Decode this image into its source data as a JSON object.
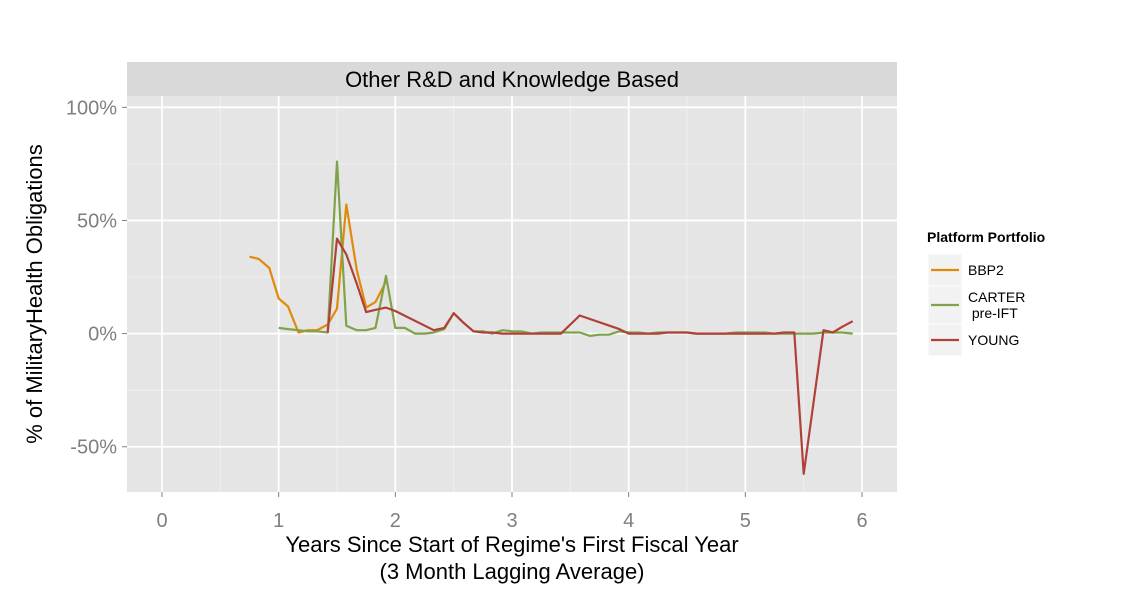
{
  "chart_data": {
    "type": "line",
    "facet_title": "Other R&D and Knowledge Based",
    "xlabel_line1": "Years Since Start of Regime's First Fiscal Year",
    "xlabel_line2": "(3 Month Lagging Average)",
    "ylabel": "% of MilitaryHealth Obligations",
    "xlim": [
      -0.3,
      6.3
    ],
    "ylim": [
      -70,
      105
    ],
    "x_ticks": [
      0,
      1,
      2,
      3,
      4,
      5,
      6
    ],
    "x_tick_labels": [
      "0",
      "1",
      "2",
      "3",
      "4",
      "5",
      "6"
    ],
    "y_ticks": [
      100,
      50,
      0,
      -50
    ],
    "y_tick_labels": [
      "100%",
      "50%",
      "0%",
      "-50%"
    ],
    "grid": true,
    "legend": {
      "title": "Platform Portfolio",
      "placement": "right",
      "items": [
        {
          "label_lines": [
            "BBP2"
          ],
          "color": "#E08A0B"
        },
        {
          "label_lines": [
            "CARTER",
            " pre-IFT"
          ],
          "color": "#7FA34A"
        },
        {
          "label_lines": [
            "YOUNG"
          ],
          "color": "#B0403A"
        }
      ]
    },
    "series": [
      {
        "name": "BBP2",
        "color": "#E08A0B",
        "x": [
          0.75,
          0.83,
          0.92,
          1.0,
          1.08,
          1.17,
          1.25,
          1.33,
          1.42,
          1.5,
          1.58,
          1.67,
          1.75,
          1.83,
          1.92
        ],
        "y": [
          34,
          33,
          29,
          15.5,
          12,
          0.5,
          1.5,
          1.5,
          4,
          11,
          57,
          28,
          11.5,
          14,
          23
        ]
      },
      {
        "name": "CARTER pre-IFT",
        "color": "#7FA34A",
        "x": [
          1.0,
          1.08,
          1.17,
          1.25,
          1.33,
          1.42,
          1.5,
          1.58,
          1.67,
          1.75,
          1.83,
          1.92,
          2.0,
          2.08,
          2.17,
          2.25,
          2.33,
          2.42,
          2.5,
          2.58,
          2.67,
          2.75,
          2.83,
          2.92,
          3.0,
          3.08,
          3.17,
          3.25,
          3.33,
          3.42,
          3.5,
          3.58,
          3.67,
          3.75,
          3.83,
          3.92,
          4.0,
          4.08,
          4.17,
          4.25,
          4.33,
          4.42,
          4.5,
          4.58,
          4.67,
          4.75,
          4.83,
          4.92,
          5.0,
          5.08,
          5.17,
          5.25,
          5.33,
          5.42,
          5.5,
          5.58,
          5.67,
          5.75,
          5.83,
          5.92
        ],
        "y": [
          2.5,
          2,
          1.5,
          1,
          1,
          0.5,
          76,
          3.5,
          1.5,
          1.5,
          2.5,
          25.5,
          2.5,
          2.5,
          0,
          0,
          0.5,
          2,
          9,
          5,
          1,
          1,
          0,
          1.5,
          1,
          1,
          0,
          0.5,
          0.5,
          0.5,
          0.5,
          0.5,
          -1,
          -0.5,
          -0.5,
          1,
          0.5,
          0.5,
          0,
          0.5,
          0.5,
          0.5,
          0.5,
          0,
          0,
          0,
          0,
          0.5,
          0.5,
          0.5,
          0.5,
          0,
          0,
          0,
          0,
          0,
          0.5,
          0.5,
          0.5,
          0
        ]
      },
      {
        "name": "YOUNG",
        "color": "#B0403A",
        "x": [
          1.42,
          1.5,
          1.58,
          1.67,
          1.75,
          1.83,
          1.92,
          2.0,
          2.33,
          2.42,
          2.5,
          2.58,
          2.67,
          2.75,
          2.83,
          2.92,
          3.0,
          3.08,
          3.17,
          3.25,
          3.33,
          3.42,
          3.58,
          3.92,
          4.0,
          4.08,
          4.17,
          4.25,
          4.33,
          4.42,
          4.5,
          4.58,
          5.17,
          5.25,
          5.33,
          5.42,
          5.5,
          5.67,
          5.75,
          5.83,
          5.92
        ],
        "y": [
          0.5,
          42,
          35,
          22,
          9.5,
          10.5,
          11.5,
          10,
          1.5,
          2.5,
          9,
          5,
          1,
          0.5,
          0.5,
          0,
          0,
          0,
          0,
          0,
          0,
          0,
          8,
          2,
          0,
          0,
          0,
          0,
          0.5,
          0.5,
          0.5,
          0,
          0,
          0,
          0.5,
          0.5,
          -62,
          1.5,
          0.5,
          3,
          5.5
        ]
      }
    ]
  }
}
